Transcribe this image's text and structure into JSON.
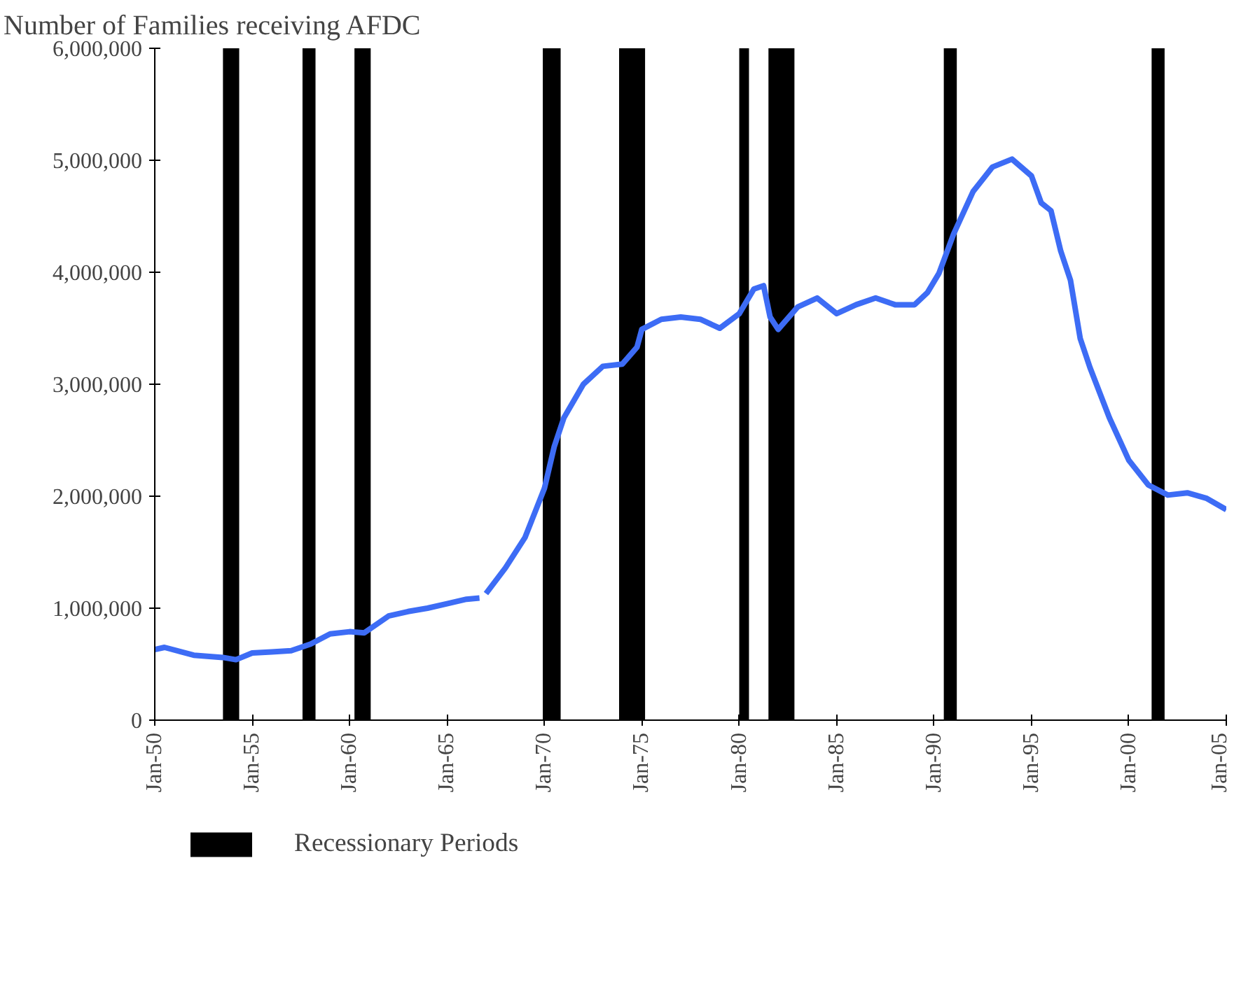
{
  "chart_data": {
    "type": "line",
    "title": "Number of Families receiving AFDC",
    "x": [
      "1950-01",
      "1950-07",
      "1952-01",
      "1953-07",
      "1954-03",
      "1955-01",
      "1956-01",
      "1957-01",
      "1958-01",
      "1959-01",
      "1960-01",
      "1960-10",
      "1962-01",
      "1963-01",
      "1964-01",
      "1965-01",
      "1966-01",
      "1966-09",
      "1966-11",
      "1967-01",
      "1968-01",
      "1969-01",
      "1970-01",
      "1970-07",
      "1971-01",
      "1972-01",
      "1973-01",
      "1974-01",
      "1974-10",
      "1975-01",
      "1976-01",
      "1977-01",
      "1978-01",
      "1979-01",
      "1980-01",
      "1980-10",
      "1981-04",
      "1981-08",
      "1982-01",
      "1983-01",
      "1984-01",
      "1985-01",
      "1986-01",
      "1987-01",
      "1988-01",
      "1989-01",
      "1989-09",
      "1990-04",
      "1991-01",
      "1992-01",
      "1993-01",
      "1994-01",
      "1995-01",
      "1995-07",
      "1996-01",
      "1996-07",
      "1997-01",
      "1997-07",
      "1998-01",
      "1999-01",
      "2000-01",
      "2001-01",
      "2002-01",
      "2003-01",
      "2004-01",
      "2005-01"
    ],
    "series": [
      {
        "color": "#3d6cf5",
        "values": [
          630000,
          650000,
          580000,
          560000,
          540000,
          600000,
          610000,
          620000,
          680000,
          770000,
          790000,
          780000,
          930000,
          970000,
          1000000,
          1040000,
          1080000,
          1090000,
          null,
          1130000,
          1360000,
          1630000,
          2070000,
          2440000,
          2700000,
          3000000,
          3160000,
          3180000,
          3330000,
          3490000,
          3580000,
          3600000,
          3580000,
          3500000,
          3630000,
          3850000,
          3880000,
          3600000,
          3490000,
          3690000,
          3770000,
          3630000,
          3710000,
          3770000,
          3710000,
          3710000,
          3820000,
          3990000,
          4340000,
          4720000,
          4940000,
          5010000,
          4860000,
          4620000,
          4550000,
          4190000,
          3930000,
          3410000,
          3150000,
          2700000,
          2320000,
          2100000,
          2010000,
          2030000,
          1980000,
          1880000
        ]
      }
    ],
    "xlim": [
      "1950-01",
      "2005-01"
    ],
    "xticks": [
      {
        "value": "1950-01",
        "label": "Jan-50"
      },
      {
        "value": "1955-01",
        "label": "Jan-55"
      },
      {
        "value": "1960-01",
        "label": "Jan-60"
      },
      {
        "value": "1965-01",
        "label": "Jan-65"
      },
      {
        "value": "1970-01",
        "label": "Jan-70"
      },
      {
        "value": "1975-01",
        "label": "Jan-75"
      },
      {
        "value": "1980-01",
        "label": "Jan-80"
      },
      {
        "value": "1985-01",
        "label": "Jan-85"
      },
      {
        "value": "1990-01",
        "label": "Jan-90"
      },
      {
        "value": "1995-01",
        "label": "Jan-95"
      },
      {
        "value": "2000-01",
        "label": "Jan-00"
      },
      {
        "value": "2005-01",
        "label": "Jan-05"
      }
    ],
    "ylim": [
      0,
      6000000
    ],
    "yticks": [
      0,
      {
        "value": 1000000,
        "label": "1,000,000"
      },
      {
        "value": 2000000,
        "label": "2,000,000"
      },
      {
        "value": 3000000,
        "label": "3,000,000"
      },
      {
        "value": 4000000,
        "label": "4,000,000"
      },
      {
        "value": 5000000,
        "label": "5,000,000"
      },
      {
        "value": 6000000,
        "label": "6,000,000"
      }
    ],
    "bands": [
      {
        "axis": "x",
        "from": "1953-07",
        "to": "1954-05",
        "color": "#000000",
        "label": "Recessionary Periods"
      },
      {
        "axis": "x",
        "from": "1957-08",
        "to": "1958-04",
        "color": "#000000"
      },
      {
        "axis": "x",
        "from": "1960-04",
        "to": "1961-02",
        "color": "#000000"
      },
      {
        "axis": "x",
        "from": "1969-12",
        "to": "1970-11",
        "color": "#000000"
      },
      {
        "axis": "x",
        "from": "1973-11",
        "to": "1975-03",
        "color": "#000000"
      },
      {
        "axis": "x",
        "from": "1980-01",
        "to": "1980-07",
        "color": "#000000"
      },
      {
        "axis": "x",
        "from": "1981-07",
        "to": "1982-11",
        "color": "#000000"
      },
      {
        "axis": "x",
        "from": "1990-07",
        "to": "1991-03",
        "color": "#000000"
      },
      {
        "axis": "x",
        "from": "2001-03",
        "to": "2001-11",
        "color": "#000000"
      }
    ],
    "legend": "bottom left",
    "grid": false
  }
}
